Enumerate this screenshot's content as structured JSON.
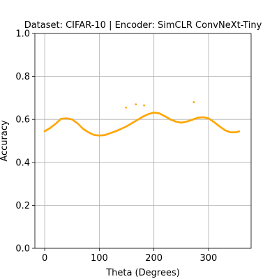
{
  "chart_data": {
    "type": "scatter",
    "title": "Dataset: CIFAR-10 | Encoder: SimCLR ConvNeXt-Tiny",
    "xlabel": "Theta (Degrees)",
    "ylabel": "Accuracy",
    "xlim": [
      -18,
      378
    ],
    "ylim": [
      0.0,
      1.0
    ],
    "xticks": [
      0,
      100,
      200,
      300
    ],
    "yticks": [
      0.0,
      0.2,
      0.4,
      0.6,
      0.8,
      1.0
    ],
    "xtick_labels": [
      "0",
      "100",
      "200",
      "300"
    ],
    "ytick_labels": [
      "0.0",
      "0.2",
      "0.4",
      "0.6",
      "0.8",
      "1.0"
    ],
    "grid": true,
    "marker_color": "#ffa500",
    "curve_anchors": {
      "x": [
        0,
        10,
        20,
        30,
        40,
        50,
        60,
        70,
        80,
        90,
        100,
        110,
        120,
        130,
        140,
        150,
        160,
        170,
        180,
        190,
        200,
        210,
        220,
        230,
        240,
        250,
        260,
        270,
        280,
        290,
        300,
        310,
        320,
        330,
        340,
        350,
        357
      ],
      "y": [
        0.545,
        0.56,
        0.58,
        0.603,
        0.605,
        0.6,
        0.582,
        0.557,
        0.54,
        0.528,
        0.525,
        0.527,
        0.536,
        0.545,
        0.556,
        0.568,
        0.583,
        0.598,
        0.613,
        0.625,
        0.632,
        0.628,
        0.615,
        0.6,
        0.59,
        0.585,
        0.59,
        0.598,
        0.608,
        0.61,
        0.605,
        0.588,
        0.568,
        0.55,
        0.54,
        0.54,
        0.545
      ]
    },
    "outliers": {
      "x": [
        149,
        167,
        182,
        273
      ],
      "y": [
        0.655,
        0.67,
        0.665,
        0.68
      ]
    }
  }
}
